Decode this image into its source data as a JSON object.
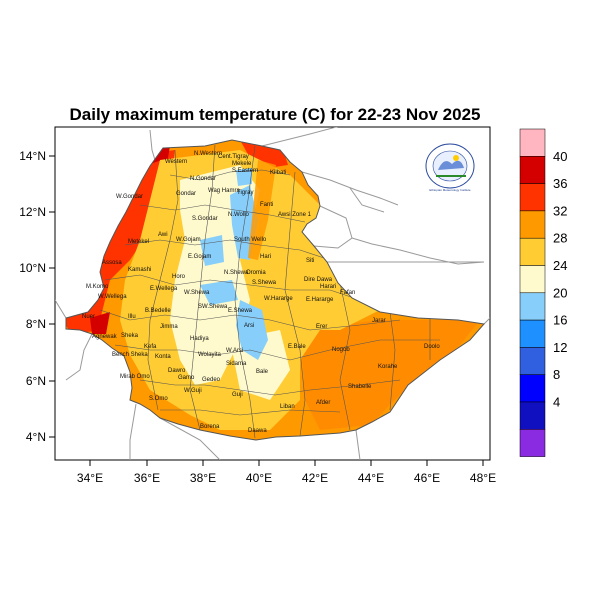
{
  "title": "Daily maximum temperature (C) for 22-23 Nov 2025",
  "axes": {
    "x_ticks": [
      "34°E",
      "36°E",
      "38°E",
      "40°E",
      "42°E",
      "44°E",
      "46°E",
      "48°E"
    ],
    "y_ticks": [
      "14°N",
      "12°N",
      "10°N",
      "8°N",
      "6°N",
      "4°N"
    ]
  },
  "colorbar": {
    "labels": [
      "40",
      "36",
      "32",
      "28",
      "24",
      "20",
      "16",
      "12",
      "8",
      "4"
    ],
    "colors": [
      "#ffb6c1",
      "#d40000",
      "#ff3300",
      "#ff9900",
      "#ffcc33",
      "#fffacd",
      "#87cefa",
      "#1e90ff",
      "#3060e0",
      "#0000ff",
      "#1010c0",
      "#8a2be2"
    ]
  },
  "regions": [
    "N.Western",
    "Cent.Tigray",
    "Mekele",
    "S.Eastern",
    "Western",
    "N.Gondar",
    "Kilbati",
    "Gondar",
    "Wag Hamra",
    "Tigray",
    "W.Gondar",
    "Fanti",
    "Awsi Zone 1",
    "S.Gondar",
    "N.Wollo",
    "Metekel",
    "Awi",
    "W.Gojam",
    "South Wello",
    "E.Gojam",
    "Hari",
    "N.Shewa",
    "Oromia",
    "Siti",
    "Assosa",
    "Kamashi",
    "Horo",
    "S.Shewa",
    "Dire Dawa",
    "Harari",
    "Fafan",
    "M.Komo",
    "W.Wellega",
    "E.Wellega",
    "W.Shewa",
    "W.Hararge",
    "E.Hararge",
    "B.Bedelle",
    "SW.Shewa",
    "E.Shewa",
    "Illu",
    "Jimma",
    "Arsi",
    "Erer",
    "Jarar",
    "Nuer",
    "Agnewak",
    "Sheka",
    "Kefa",
    "Hadiya",
    "W.Arsi",
    "E.Bale",
    "Bench Sheka",
    "Konta",
    "Wolayita",
    "Sidama",
    "Nogob",
    "Doolo",
    "Mirab Omo",
    "Dawro",
    "Bale",
    "Korahe",
    "Gamo",
    "Gedeo",
    "Shabelle",
    "Guji",
    "S.Omo",
    "Liban",
    "Afder",
    "W.Guji",
    "Borena",
    "Daawa"
  ],
  "logo": {
    "text": "Ethiopian Meteorology Institute"
  }
}
